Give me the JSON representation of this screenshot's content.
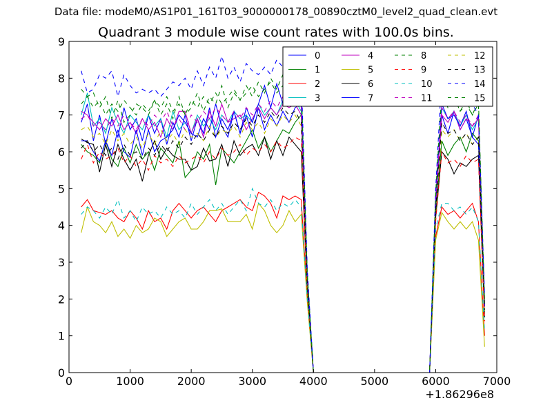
{
  "chart_data": {
    "type": "line",
    "suptitle": "Data file: modeM0/AS1P01_161T03_9000000178_00890cztM0_level2_quad_clean.evt",
    "title": "Quadrant 3 module wise count rates with 100.0s bins.",
    "x_offset_label": "+1.86296e8",
    "xlim": [
      0,
      7000
    ],
    "ylim": [
      0,
      9
    ],
    "xticks": [
      "0",
      "1000",
      "2000",
      "3000",
      "4000",
      "5000",
      "6000",
      "7000"
    ],
    "yticks": [
      "0",
      "1",
      "2",
      "3",
      "4",
      "5",
      "6",
      "7",
      "8",
      "9"
    ],
    "legend_position": "upper right",
    "x": [
      200,
      300,
      400,
      500,
      600,
      700,
      800,
      900,
      1000,
      1100,
      1200,
      1300,
      1400,
      1500,
      1600,
      1700,
      1800,
      1900,
      2000,
      2100,
      2200,
      2300,
      2400,
      2500,
      2600,
      2700,
      2800,
      2900,
      3000,
      3100,
      3200,
      3300,
      3400,
      3500,
      3600,
      3700,
      3800,
      3900,
      4000,
      5900,
      6000,
      6100,
      6200,
      6300,
      6400,
      6500,
      6600,
      6700,
      6800
    ],
    "series": [
      {
        "name": "0",
        "color": "#0000ff",
        "dash": "solid",
        "values": [
          6.8,
          7.3,
          6.3,
          7.0,
          6.2,
          6.9,
          6.4,
          7.2,
          6.6,
          6.9,
          6.3,
          7.0,
          6.5,
          6.9,
          6.2,
          6.8,
          6.4,
          7.0,
          6.3,
          6.9,
          6.5,
          7.2,
          6.4,
          6.9,
          6.6,
          7.1,
          6.5,
          7.0,
          6.4,
          7.2,
          6.6,
          7.0,
          6.7,
          7.1,
          6.8,
          7.2,
          7.3,
          2.5,
          0.0,
          0.0,
          4.5,
          7.0,
          6.5,
          7.1,
          6.6,
          6.9,
          6.4,
          7.0,
          1.8
        ]
      },
      {
        "name": "1",
        "color": "#008000",
        "dash": "solid",
        "values": [
          6.2,
          6.0,
          5.9,
          5.7,
          6.3,
          5.8,
          5.6,
          6.1,
          5.7,
          6.2,
          5.8,
          6.0,
          5.5,
          6.1,
          5.9,
          5.7,
          6.3,
          5.3,
          5.5,
          6.0,
          5.8,
          6.2,
          5.1,
          6.1,
          5.9,
          5.7,
          6.0,
          6.3,
          6.6,
          6.1,
          6.4,
          6.0,
          6.3,
          6.6,
          6.5,
          6.8,
          7.0,
          2.3,
          0.0,
          0.0,
          4.3,
          6.3,
          5.9,
          6.2,
          6.4,
          6.0,
          6.5,
          6.3,
          1.6
        ]
      },
      {
        "name": "2",
        "color": "#ff0000",
        "dash": "solid",
        "values": [
          4.5,
          4.7,
          4.4,
          4.35,
          4.3,
          4.4,
          4.2,
          4.1,
          4.4,
          4.2,
          3.9,
          4.4,
          4.1,
          4.2,
          3.9,
          4.4,
          4.6,
          4.4,
          4.2,
          4.4,
          4.5,
          4.3,
          4.1,
          4.4,
          4.5,
          4.6,
          4.7,
          4.5,
          4.4,
          4.9,
          4.8,
          4.6,
          4.2,
          4.8,
          4.7,
          4.8,
          4.7,
          2.0,
          0.0,
          0.0,
          3.7,
          4.5,
          4.3,
          4.4,
          4.2,
          4.4,
          4.6,
          4.1,
          1.0
        ]
      },
      {
        "name": "3",
        "color": "#00bfbf",
        "dash": "solid",
        "values": [
          7.0,
          7.6,
          6.7,
          6.9,
          6.5,
          7.2,
          6.8,
          6.5,
          7.0,
          6.8,
          6.6,
          7.0,
          6.7,
          6.9,
          6.4,
          7.1,
          6.6,
          6.8,
          6.5,
          7.0,
          6.7,
          6.9,
          6.6,
          7.0,
          6.8,
          7.1,
          6.9,
          7.0,
          6.8,
          7.3,
          7.0,
          7.2,
          7.0,
          7.4,
          7.3,
          7.4,
          7.1,
          2.4,
          0.0,
          0.0,
          4.6,
          7.2,
          6.9,
          7.1,
          6.7,
          7.0,
          6.6,
          6.9,
          1.9
        ]
      },
      {
        "name": "4",
        "color": "#bf00bf",
        "dash": "solid",
        "values": [
          7.1,
          7.0,
          6.8,
          6.6,
          6.9,
          6.7,
          7.0,
          6.6,
          6.8,
          6.5,
          6.9,
          6.6,
          6.8,
          6.4,
          6.9,
          6.6,
          7.1,
          7.1,
          6.5,
          6.9,
          6.4,
          7.1,
          6.7,
          7.3,
          6.8,
          6.9,
          7.0,
          6.6,
          6.9,
          7.2,
          6.9,
          7.2,
          7.0,
          7.3,
          7.2,
          7.3,
          7.0,
          2.4,
          0.0,
          0.0,
          4.5,
          7.0,
          6.8,
          7.1,
          6.6,
          6.9,
          6.7,
          6.9,
          1.9
        ]
      },
      {
        "name": "5",
        "color": "#bfbf00",
        "dash": "solid",
        "values": [
          3.8,
          4.5,
          4.1,
          4.0,
          3.8,
          4.1,
          3.7,
          3.9,
          3.65,
          4.0,
          3.8,
          3.9,
          4.2,
          4.1,
          3.7,
          3.9,
          4.1,
          4.2,
          3.9,
          3.9,
          4.1,
          4.4,
          4.4,
          4.45,
          4.1,
          4.1,
          4.1,
          4.3,
          3.9,
          4.6,
          4.4,
          4.0,
          3.8,
          4.0,
          4.4,
          4.1,
          4.3,
          1.9,
          0.0,
          0.0,
          3.6,
          4.35,
          4.1,
          3.9,
          4.1,
          3.9,
          4.1,
          3.6,
          0.7
        ]
      },
      {
        "name": "6",
        "color": "#000000",
        "dash": "solid",
        "values": [
          6.35,
          6.25,
          6.2,
          5.45,
          6.2,
          5.6,
          6.2,
          5.8,
          5.5,
          5.8,
          5.2,
          5.9,
          6.3,
          5.8,
          6.1,
          5.9,
          5.8,
          5.8,
          5.5,
          5.6,
          6.1,
          5.75,
          5.8,
          6.2,
          5.6,
          6.3,
          5.9,
          6.1,
          6.2,
          5.9,
          6.4,
          5.8,
          6.3,
          5.9,
          6.4,
          6.2,
          6.0,
          2.2,
          0.0,
          0.0,
          4.2,
          6.0,
          5.8,
          5.4,
          5.7,
          5.6,
          5.8,
          5.9,
          1.5
        ]
      },
      {
        "name": "7",
        "color": "#0000ff",
        "dash": "solid",
        "values": [
          6.3,
          6.3,
          6.0,
          5.75,
          6.3,
          5.9,
          6.6,
          6.0,
          5.85,
          6.6,
          5.9,
          6.6,
          6.0,
          6.3,
          6.4,
          6.6,
          7.0,
          6.8,
          6.5,
          6.4,
          6.9,
          6.6,
          7.3,
          6.7,
          6.4,
          7.1,
          6.5,
          7.2,
          6.8,
          7.3,
          7.8,
          7.2,
          7.85,
          7.3,
          7.6,
          7.9,
          7.5,
          2.6,
          0.0,
          0.0,
          4.7,
          7.3,
          6.9,
          7.0,
          6.7,
          7.1,
          6.4,
          6.2,
          1.8
        ]
      }
    ],
    "dashed_series": [
      {
        "name": "8",
        "color": "#008000",
        "values": [
          7.7,
          7.5,
          7.6,
          7.2,
          7.5,
          6.9,
          7.4,
          6.8,
          7.0,
          7.3,
          7.2,
          7.0,
          7.4,
          7.0,
          7.3,
          6.9,
          7.5,
          7.0,
          7.2,
          7.6,
          7.1,
          7.5,
          7.3,
          7.8,
          7.2,
          7.6,
          7.4,
          7.8,
          7.5,
          7.9,
          7.6,
          8.0,
          7.7,
          8.1,
          7.9,
          8.2,
          7.8,
          2.7,
          0.0,
          0.0,
          4.9,
          7.6,
          7.2,
          7.5,
          7.1,
          7.4,
          7.0,
          7.3,
          2.0
        ]
      },
      {
        "name": "9",
        "color": "#ff0000",
        "values": [
          5.8,
          6.2,
          5.7,
          6.0,
          5.8,
          5.9,
          6.1,
          5.7,
          5.9,
          5.6,
          5.8,
          5.5,
          5.9,
          5.7,
          5.8,
          5.6,
          5.9,
          5.7,
          5.8,
          5.9,
          5.7,
          6.0,
          5.8,
          6.1,
          5.9,
          6.0,
          6.2,
          5.9,
          6.1,
          6.0,
          6.2,
          6.0,
          6.3,
          6.1,
          6.2,
          6.4,
          6.3,
          2.1,
          0.0,
          0.0,
          4.1,
          6.0,
          5.7,
          5.8,
          5.6,
          5.9,
          5.7,
          5.8,
          1.4
        ]
      },
      {
        "name": "10",
        "color": "#00bfbf",
        "values": [
          4.3,
          4.5,
          4.4,
          4.2,
          4.5,
          4.3,
          4.7,
          4.2,
          4.4,
          4.1,
          4.5,
          4.3,
          4.4,
          4.2,
          4.5,
          4.3,
          4.4,
          4.2,
          4.6,
          4.3,
          4.5,
          4.7,
          4.4,
          4.6,
          4.3,
          4.5,
          4.7,
          4.4,
          5.0,
          4.6,
          4.5,
          4.7,
          4.4,
          4.6,
          4.5,
          4.7,
          4.5,
          2.0,
          0.0,
          0.0,
          3.9,
          4.6,
          4.6,
          4.4,
          4.5,
          4.3,
          4.5,
          4.1,
          1.1
        ]
      },
      {
        "name": "11",
        "color": "#bf00bf",
        "values": [
          6.9,
          7.0,
          6.7,
          6.8,
          6.6,
          6.9,
          6.7,
          7.0,
          6.8,
          6.6,
          6.9,
          6.7,
          7.0,
          6.8,
          7.1,
          6.7,
          6.9,
          6.6,
          7.0,
          6.8,
          7.1,
          6.9,
          7.2,
          7.0,
          6.8,
          7.1,
          6.9,
          7.2,
          7.0,
          7.3,
          7.1,
          7.4,
          7.2,
          7.5,
          7.3,
          7.5,
          7.2,
          2.5,
          0.0,
          0.0,
          4.7,
          7.2,
          6.9,
          7.1,
          6.8,
          7.0,
          6.7,
          7.0,
          1.9
        ]
      },
      {
        "name": "12",
        "color": "#bfbf00",
        "values": [
          6.6,
          6.7,
          6.4,
          6.5,
          6.2,
          6.6,
          6.3,
          6.5,
          6.2,
          6.4,
          6.1,
          6.5,
          6.2,
          6.6,
          6.3,
          6.5,
          6.2,
          6.6,
          6.4,
          6.5,
          6.3,
          6.7,
          6.4,
          6.6,
          6.5,
          6.7,
          6.4,
          6.8,
          6.6,
          6.8,
          6.5,
          6.9,
          6.7,
          7.0,
          6.8,
          7.0,
          6.7,
          2.3,
          0.0,
          0.0,
          4.3,
          6.6,
          6.4,
          6.6,
          6.3,
          6.5,
          6.2,
          6.4,
          1.6
        ]
      },
      {
        "name": "13",
        "color": "#000000",
        "values": [
          6.1,
          6.3,
          6.0,
          6.2,
          5.9,
          6.1,
          5.8,
          6.2,
          5.9,
          6.0,
          5.8,
          6.1,
          5.9,
          6.2,
          6.0,
          6.3,
          6.1,
          6.4,
          6.2,
          6.5,
          6.3,
          6.6,
          6.4,
          6.7,
          6.5,
          6.8,
          6.6,
          6.9,
          6.7,
          7.0,
          6.8,
          7.1,
          6.9,
          7.2,
          7.0,
          7.1,
          6.8,
          2.4,
          0.0,
          0.0,
          4.4,
          6.8,
          6.5,
          6.6,
          6.3,
          6.5,
          6.2,
          6.4,
          1.7
        ]
      },
      {
        "name": "14",
        "color": "#0000ff",
        "values": [
          8.2,
          7.6,
          7.7,
          8.1,
          8.0,
          8.2,
          7.5,
          8.1,
          7.8,
          7.6,
          7.7,
          7.6,
          7.7,
          7.5,
          7.7,
          7.9,
          7.8,
          8.0,
          7.7,
          8.2,
          7.8,
          8.3,
          8.0,
          8.6,
          8.0,
          8.3,
          7.9,
          8.4,
          8.2,
          8.1,
          8.3,
          8.1,
          8.5,
          8.3,
          8.4,
          8.6,
          8.1,
          2.8,
          0.0,
          0.0,
          5.0,
          8.1,
          8.1,
          7.8,
          7.6,
          7.5,
          7.3,
          7.0,
          2.1
        ]
      },
      {
        "name": "15",
        "color": "#008000",
        "values": [
          7.3,
          7.5,
          7.2,
          7.4,
          7.0,
          7.3,
          7.1,
          7.4,
          7.2,
          7.0,
          7.3,
          7.1,
          7.4,
          7.2,
          7.5,
          7.1,
          7.3,
          7.0,
          7.4,
          7.2,
          7.5,
          7.3,
          7.6,
          7.3,
          7.5,
          7.7,
          7.4,
          7.6,
          7.8,
          7.5,
          7.7,
          7.9,
          7.6,
          7.8,
          8.0,
          7.9,
          7.7,
          2.6,
          0.0,
          0.0,
          4.8,
          7.6,
          7.3,
          7.5,
          7.1,
          7.3,
          7.0,
          7.4,
          1.9
        ]
      }
    ]
  }
}
